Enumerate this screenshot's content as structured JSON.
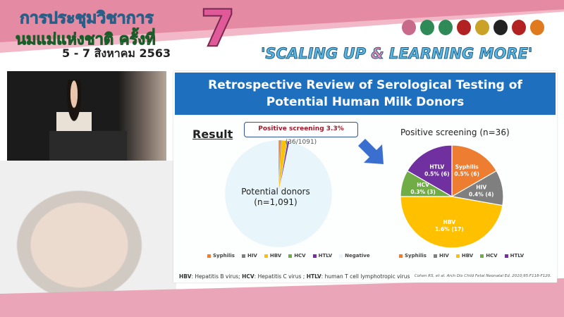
{
  "banner": {
    "conference_line1": "การประชุมวิชาการ",
    "conference_line2": "นมแม่แห่งชาติ ครั้งที่",
    "edition": "7",
    "dates": "5 - 7 สิงหาคม 2563",
    "slogan_part1": "'SCALING UP ",
    "slogan_amp": "&",
    "slogan_part2": " LEARNING MORE'",
    "logo_colors": [
      "#c86a8a",
      "#2e8b57",
      "#2e8b57",
      "#b22222",
      "#c9a227",
      "#222222",
      "#b22222",
      "#e07a1f"
    ]
  },
  "slide": {
    "title_line1": "Retrospective Review of Serological Testing of",
    "title_line2": "Potential Human Milk Donors",
    "header_color": "#1f6fbf",
    "result_label": "Result",
    "callout_bold": "Positive screening 3.3%",
    "callout_rest": " (36/1091)",
    "donor_label": "Potential donors",
    "donor_n": "(n=1,091)",
    "footnote_parts": [
      {
        "b": "HBV",
        "t": ": Hepatitis B virus; "
      },
      {
        "b": "HCV",
        "t": ": Hepatitis C virus ; "
      },
      {
        "b": "HTLV",
        "t": ": human T cell lymphotropic virus"
      }
    ],
    "citation": "Cohen RS, et al. Arch Dis Child Fetal Neonatal Ed. 2010;95:F118-F120."
  },
  "chart_data": [
    {
      "type": "pie",
      "title": "",
      "center_label": "Potential donors (n=1,091)",
      "categories": [
        "Syphilis",
        "HIV",
        "HBV",
        "HCV",
        "HTLV",
        "Negative"
      ],
      "values": [
        6,
        4,
        17,
        3,
        6,
        1055
      ],
      "colors": [
        "#ed7d31",
        "#7f7f7f",
        "#ffc000",
        "#70ad47",
        "#7030a0",
        "#e8f6fc"
      ],
      "legend": "bottom"
    },
    {
      "type": "pie",
      "title": "Positive screening (n=36)",
      "categories": [
        "Syphilis",
        "HIV",
        "HBV",
        "HCV",
        "HTLV"
      ],
      "values": [
        6,
        4,
        17,
        3,
        6
      ],
      "labels": [
        "0.5% (6)",
        "0.4% (4)",
        "1.6% (17)",
        "0.3% (3)",
        "0.5% (6)"
      ],
      "colors": [
        "#ed7d31",
        "#7f7f7f",
        "#ffc000",
        "#70ad47",
        "#7030a0"
      ],
      "legend": "bottom"
    }
  ]
}
